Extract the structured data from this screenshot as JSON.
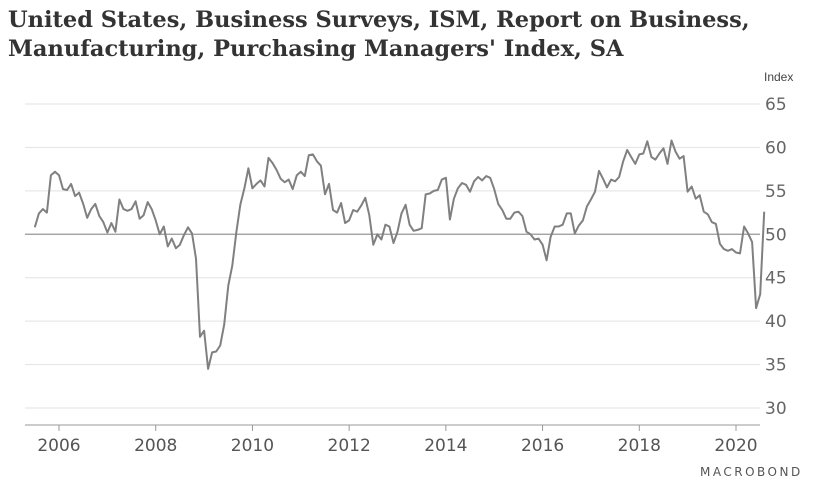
{
  "chart_data": {
    "type": "line",
    "title": "United States, Business Surveys, ISM, Report on Business, Manufacturing, Purchasing Managers' Index, SA",
    "title_lines": [
      "United States, Business Surveys, ISM, Report on Business,",
      "Manufacturing, Purchasing Managers' Index, SA"
    ],
    "ylabel": "Index",
    "ylim": [
      28,
      67
    ],
    "yticks": [
      30,
      35,
      40,
      45,
      50,
      55,
      60,
      65
    ],
    "xlim": [
      2005.5,
      2020.9
    ],
    "xticks": [
      2006,
      2008,
      2010,
      2012,
      2014,
      2016,
      2018,
      2020
    ],
    "reference_line": 50,
    "grid": "horizontal",
    "line_color": "#808080",
    "series": [
      {
        "x_start": 2005.5,
        "x_step_months": 1,
        "values": [
          50.8,
          52.4,
          52.9,
          52.5,
          56.8,
          57.2,
          56.8,
          55.2,
          55.1,
          55.8,
          54.4,
          54.8,
          53.5,
          51.9,
          52.9,
          53.5,
          52.1,
          51.4,
          50.2,
          51.3,
          50.3,
          54.0,
          52.9,
          52.7,
          52.9,
          53.8,
          51.8,
          52.2,
          53.7,
          52.9,
          51.6,
          50.0,
          50.9,
          48.6,
          49.5,
          48.4,
          48.8,
          49.9,
          50.8,
          50.1,
          47.2,
          38.2,
          38.9,
          34.5,
          36.4,
          36.5,
          37.2,
          39.6,
          44.1,
          46.4,
          50.2,
          53.4,
          55.3,
          57.6,
          55.3,
          55.8,
          56.2,
          55.5,
          58.8,
          58.2,
          57.4,
          56.4,
          56.0,
          56.3,
          55.2,
          56.8,
          57.2,
          56.7,
          59.1,
          59.2,
          58.4,
          57.9,
          54.6,
          55.8,
          52.8,
          52.5,
          53.6,
          51.3,
          51.6,
          52.8,
          52.6,
          53.3,
          54.2,
          52.2,
          48.8,
          50.0,
          49.4,
          51.1,
          50.9,
          49.0,
          50.3,
          52.4,
          53.4,
          51.1,
          50.4,
          50.5,
          50.7,
          54.6,
          54.7,
          55.0,
          55.1,
          56.3,
          56.5,
          51.7,
          54.1,
          55.3,
          55.9,
          55.7,
          54.9,
          56.1,
          56.6,
          56.2,
          56.7,
          56.5,
          55.2,
          53.5,
          52.8,
          51.8,
          51.8,
          52.5,
          52.6,
          52.1,
          50.3,
          50.0,
          49.4,
          49.5,
          48.8,
          47.0,
          49.7,
          50.9,
          50.9,
          51.1,
          52.4,
          52.4,
          50.1,
          51.0,
          51.6,
          53.2,
          54.0,
          54.9,
          57.3,
          56.4,
          55.4,
          56.3,
          56.1,
          56.6,
          58.4,
          59.7,
          58.9,
          58.1,
          59.2,
          59.3,
          60.7,
          58.9,
          58.6,
          59.3,
          59.9,
          58.1,
          60.8,
          59.5,
          58.7,
          59.0,
          54.9,
          55.5,
          54.1,
          54.5,
          52.6,
          52.3,
          51.4,
          51.2,
          48.9,
          48.3,
          48.1,
          48.3,
          47.9,
          47.8,
          50.9,
          50.1,
          49.1,
          41.5,
          43.1,
          52.6
        ]
      }
    ]
  },
  "source_logo": "MACROBOND"
}
